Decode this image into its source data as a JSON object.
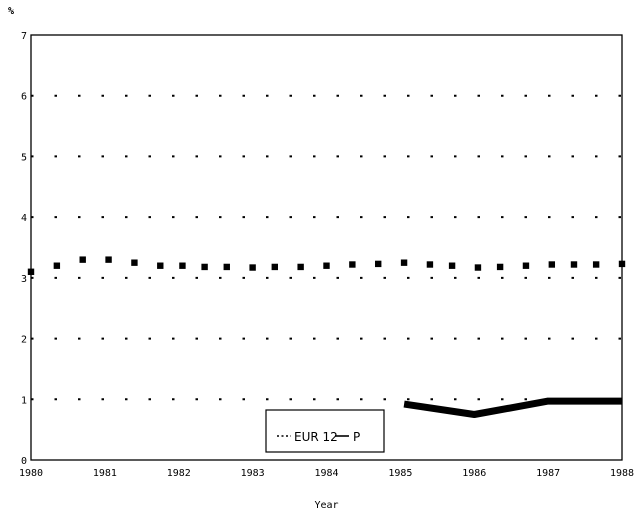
{
  "chart_data": {
    "type": "line",
    "title": "",
    "unit_label": "%",
    "xlabel": "Year",
    "ylabel": "",
    "xlim": [
      1980,
      1988
    ],
    "ylim": [
      0,
      7
    ],
    "x_ticks": [
      "1980",
      "1981",
      "1982",
      "1983",
      "1984",
      "1985",
      "1986",
      "1987",
      "1988"
    ],
    "y_ticks": [
      "0",
      "1",
      "2",
      "3",
      "4",
      "5",
      "6",
      "7"
    ],
    "grid": "horizontal dotted",
    "legend_position": "bottom-center",
    "series": [
      {
        "name": "EUR 12",
        "style": "dotted",
        "color": "#000000",
        "points": [
          [
            1980.0,
            3.1
          ],
          [
            1980.35,
            3.2
          ],
          [
            1980.7,
            3.3
          ],
          [
            1981.05,
            3.3
          ],
          [
            1981.4,
            3.25
          ],
          [
            1981.75,
            3.2
          ],
          [
            1982.05,
            3.2
          ],
          [
            1982.35,
            3.18
          ],
          [
            1982.65,
            3.18
          ],
          [
            1983.0,
            3.17
          ],
          [
            1983.3,
            3.18
          ],
          [
            1983.65,
            3.18
          ],
          [
            1984.0,
            3.2
          ],
          [
            1984.35,
            3.22
          ],
          [
            1984.7,
            3.23
          ],
          [
            1985.05,
            3.25
          ],
          [
            1985.4,
            3.22
          ],
          [
            1985.7,
            3.2
          ],
          [
            1986.05,
            3.17
          ],
          [
            1986.35,
            3.18
          ],
          [
            1986.7,
            3.2
          ],
          [
            1987.05,
            3.22
          ],
          [
            1987.35,
            3.22
          ],
          [
            1987.65,
            3.22
          ],
          [
            1988.0,
            3.23
          ]
        ]
      },
      {
        "name": "P",
        "style": "solid-thick",
        "color": "#000000",
        "points": [
          [
            1985.05,
            0.92
          ],
          [
            1986.0,
            0.75
          ],
          [
            1987.0,
            0.97
          ],
          [
            1988.0,
            0.97
          ]
        ]
      }
    ]
  }
}
